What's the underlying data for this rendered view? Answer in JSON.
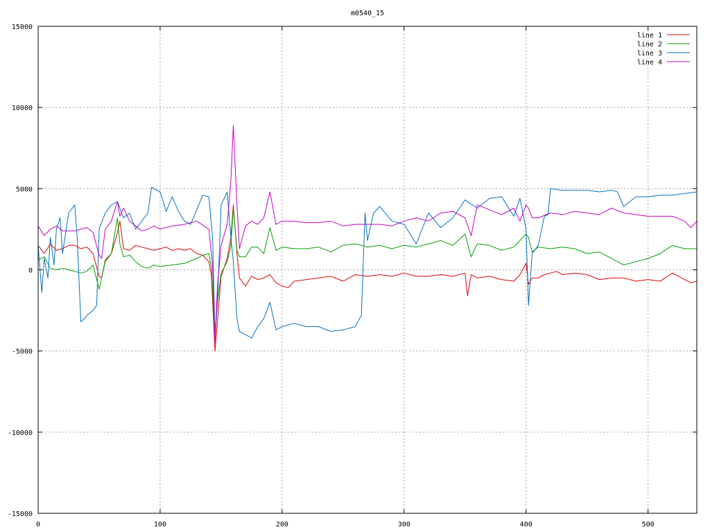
{
  "chart_data": {
    "type": "line",
    "title": "m0540_15",
    "xlabel": "",
    "ylabel": "",
    "xlim": [
      0,
      540
    ],
    "ylim": [
      -15000,
      15000
    ],
    "x_ticks": [
      0,
      100,
      200,
      300,
      400,
      500
    ],
    "y_ticks": [
      -15000,
      -10000,
      -5000,
      0,
      5000,
      10000,
      15000
    ],
    "grid": true,
    "legend_position": "top-right",
    "series": [
      {
        "name": "line 1",
        "color": "#e00000",
        "x": [
          0,
          5,
          10,
          15,
          20,
          25,
          30,
          35,
          40,
          45,
          50,
          52,
          55,
          60,
          65,
          67,
          70,
          75,
          80,
          85,
          90,
          95,
          100,
          105,
          110,
          115,
          120,
          125,
          130,
          135,
          140,
          142,
          145,
          147,
          150,
          155,
          158,
          160,
          163,
          165,
          170,
          175,
          180,
          185,
          190,
          195,
          200,
          205,
          210,
          220,
          230,
          240,
          250,
          260,
          270,
          280,
          290,
          300,
          310,
          320,
          330,
          340,
          350,
          352,
          355,
          360,
          370,
          380,
          390,
          395,
          400,
          402,
          405,
          410,
          415,
          420,
          425,
          430,
          440,
          450,
          460,
          470,
          480,
          490,
          500,
          510,
          520,
          530,
          535,
          540
        ],
        "y": [
          1500,
          1000,
          1600,
          1200,
          1300,
          1500,
          1500,
          1300,
          1400,
          1000,
          -400,
          -500,
          600,
          1000,
          2300,
          3000,
          1300,
          1200,
          1500,
          1400,
          1300,
          1200,
          1300,
          1400,
          1200,
          1300,
          1200,
          1300,
          1000,
          900,
          500,
          -300,
          -5000,
          -3200,
          -400,
          700,
          2000,
          4000,
          1000,
          -500,
          -1000,
          -400,
          -600,
          -500,
          -300,
          -800,
          -1000,
          -1100,
          -700,
          -600,
          -500,
          -400,
          -700,
          -300,
          -400,
          -300,
          -400,
          -200,
          -400,
          -400,
          -300,
          -400,
          -200,
          -1600,
          -300,
          -500,
          -400,
          -600,
          -700,
          -300,
          400,
          -900,
          -500,
          -500,
          -300,
          -200,
          -100,
          -300,
          -200,
          -300,
          -600,
          -500,
          -500,
          -700,
          -600,
          -700,
          -200,
          -600,
          -800,
          -700
        ]
      },
      {
        "name": "line 2",
        "color": "#00a000",
        "x": [
          0,
          5,
          10,
          15,
          20,
          25,
          30,
          35,
          40,
          45,
          50,
          52,
          55,
          60,
          65,
          67,
          70,
          75,
          80,
          85,
          90,
          95,
          100,
          110,
          120,
          130,
          135,
          140,
          142,
          145,
          147,
          150,
          155,
          158,
          160,
          163,
          165,
          170,
          175,
          180,
          185,
          190,
          195,
          200,
          210,
          220,
          230,
          240,
          250,
          260,
          270,
          280,
          290,
          300,
          310,
          320,
          330,
          340,
          350,
          355,
          360,
          370,
          380,
          390,
          400,
          402,
          405,
          410,
          420,
          430,
          440,
          450,
          460,
          470,
          480,
          490,
          500,
          510,
          520,
          530,
          540
        ],
        "y": [
          600,
          800,
          100,
          0,
          100,
          0,
          -100,
          -200,
          -100,
          300,
          -1200,
          -500,
          500,
          1000,
          3200,
          1600,
          800,
          900,
          500,
          200,
          100,
          300,
          200,
          300,
          400,
          700,
          900,
          1000,
          200,
          -4200,
          -2000,
          -200,
          500,
          1500,
          3800,
          1200,
          800,
          800,
          1400,
          1400,
          1000,
          2600,
          1200,
          1400,
          1300,
          1300,
          1400,
          1100,
          1500,
          1600,
          1400,
          1500,
          1300,
          1500,
          1400,
          1600,
          1800,
          1500,
          2200,
          800,
          1600,
          1500,
          1200,
          1400,
          2200,
          2000,
          1100,
          1400,
          1300,
          1400,
          1300,
          1000,
          1100,
          700,
          300,
          500,
          700,
          1000,
          1500,
          1300,
          1300
        ]
      },
      {
        "name": "line 3",
        "color": "#0070c0",
        "x": [
          0,
          3,
          5,
          8,
          10,
          13,
          15,
          18,
          20,
          25,
          30,
          32,
          35,
          38,
          40,
          45,
          48,
          50,
          55,
          60,
          65,
          70,
          75,
          80,
          85,
          90,
          93,
          95,
          100,
          105,
          110,
          115,
          120,
          125,
          130,
          135,
          140,
          143,
          145,
          147,
          150,
          155,
          158,
          160,
          163,
          165,
          170,
          175,
          180,
          185,
          190,
          195,
          200,
          210,
          220,
          230,
          240,
          250,
          260,
          265,
          268,
          270,
          275,
          280,
          290,
          300,
          310,
          320,
          330,
          340,
          350,
          360,
          370,
          380,
          390,
          395,
          400,
          402,
          405,
          410,
          415,
          418,
          420,
          430,
          440,
          450,
          460,
          470,
          475,
          480,
          490,
          500,
          510,
          520,
          530,
          540
        ],
        "y": [
          1500,
          -1400,
          700,
          -500,
          2000,
          300,
          2500,
          3200,
          1000,
          3500,
          4000,
          2000,
          -3200,
          -3000,
          -2800,
          -2500,
          -2200,
          2500,
          3500,
          4000,
          4200,
          3200,
          3500,
          2500,
          3000,
          3500,
          5100,
          5000,
          4800,
          3600,
          4500,
          3600,
          3000,
          2800,
          3700,
          4600,
          4500,
          2000,
          -4000,
          -2000,
          4000,
          4800,
          2000,
          500,
          -3000,
          -3800,
          -4000,
          -4200,
          -3500,
          -3000,
          -2000,
          -3700,
          -3500,
          -3300,
          -3500,
          -3500,
          -3800,
          -3700,
          -3500,
          -2800,
          3500,
          1800,
          3500,
          3900,
          3000,
          2800,
          1600,
          3500,
          2600,
          3200,
          4300,
          3800,
          4400,
          4500,
          3300,
          4400,
          2500,
          -2200,
          1000,
          1500,
          3300,
          3400,
          5000,
          4900,
          4900,
          4900,
          4800,
          4900,
          4800,
          3900,
          4500,
          4500,
          4600,
          4600,
          4700,
          4800
        ]
      },
      {
        "name": "line 4",
        "color": "#c000c0",
        "x": [
          0,
          5,
          10,
          15,
          20,
          25,
          30,
          35,
          40,
          45,
          50,
          52,
          55,
          60,
          65,
          67,
          70,
          75,
          80,
          85,
          90,
          95,
          100,
          110,
          120,
          130,
          140,
          143,
          145,
          147,
          150,
          155,
          158,
          160,
          163,
          165,
          170,
          175,
          180,
          185,
          190,
          195,
          200,
          210,
          220,
          230,
          240,
          250,
          260,
          270,
          280,
          290,
          300,
          310,
          320,
          330,
          340,
          350,
          355,
          360,
          370,
          380,
          390,
          395,
          400,
          402,
          405,
          410,
          420,
          430,
          440,
          450,
          460,
          470,
          480,
          490,
          500,
          510,
          520,
          530,
          535,
          540
        ],
        "y": [
          2700,
          2100,
          2500,
          2700,
          2400,
          2400,
          2400,
          2500,
          2600,
          2300,
          900,
          700,
          2500,
          3000,
          4200,
          3300,
          3800,
          3000,
          2700,
          2400,
          2500,
          2700,
          2500,
          2700,
          2800,
          3000,
          2500,
          300,
          -4500,
          -1000,
          1500,
          2800,
          5500,
          8900,
          4000,
          1300,
          2700,
          3000,
          2800,
          3200,
          4800,
          2800,
          3000,
          3000,
          2900,
          2900,
          3000,
          2700,
          2800,
          2800,
          2800,
          2700,
          3000,
          3200,
          3000,
          3500,
          3600,
          3200,
          2100,
          4000,
          3700,
          3400,
          3800,
          3000,
          4000,
          3800,
          3200,
          3200,
          3500,
          3400,
          3600,
          3500,
          3400,
          3800,
          3500,
          3400,
          3300,
          3300,
          3300,
          3000,
          2600,
          3000
        ]
      }
    ]
  }
}
